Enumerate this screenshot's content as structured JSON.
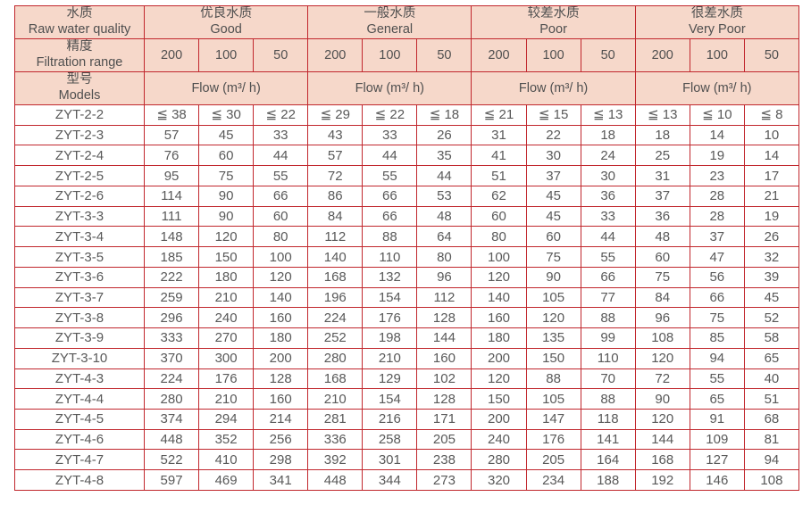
{
  "table": {
    "colors": {
      "border": "#c1272d",
      "header_bg": "#f6d8ca",
      "text": "#595959"
    },
    "header": {
      "quality_label": {
        "zh": "水质",
        "en": "Raw water quality"
      },
      "filtration_label": {
        "zh": "精度",
        "en": "Filtration range"
      },
      "models_label": {
        "zh": "型号",
        "en": "Models"
      },
      "quality_groups": [
        {
          "zh": "优良水质",
          "en": "Good"
        },
        {
          "zh": "一般水质",
          "en": "General"
        },
        {
          "zh": "较差水质",
          "en": "Poor"
        },
        {
          "zh": "很差水质",
          "en": "Very Poor"
        }
      ],
      "filtration_values": [
        "200",
        "100",
        "50",
        "200",
        "100",
        "50",
        "200",
        "100",
        "50",
        "200",
        "100",
        "50"
      ],
      "flow_labels": [
        "Flow (m³/ h)",
        "Flow (m³/ h)",
        "Flow (m³/ h)",
        "Flow (m³/ h)"
      ]
    },
    "rows": [
      {
        "model": "ZYT-2-2",
        "values": [
          "≦ 38",
          "≦ 30",
          "≦ 22",
          "≦ 29",
          "≦ 22",
          "≦ 18",
          "≦ 21",
          "≦ 15",
          "≦ 13",
          "≦ 13",
          "≦ 10",
          "≦ 8"
        ]
      },
      {
        "model": "ZYT-2-3",
        "values": [
          "57",
          "45",
          "33",
          "43",
          "33",
          "26",
          "31",
          "22",
          "18",
          "18",
          "14",
          "10"
        ]
      },
      {
        "model": "ZYT-2-4",
        "values": [
          "76",
          "60",
          "44",
          "57",
          "44",
          "35",
          "41",
          "30",
          "24",
          "25",
          "19",
          "14"
        ]
      },
      {
        "model": "ZYT-2-5",
        "values": [
          "95",
          "75",
          "55",
          "72",
          "55",
          "44",
          "51",
          "37",
          "30",
          "31",
          "23",
          "17"
        ]
      },
      {
        "model": "ZYT-2-6",
        "values": [
          "114",
          "90",
          "66",
          "86",
          "66",
          "53",
          "62",
          "45",
          "36",
          "37",
          "28",
          "21"
        ]
      },
      {
        "model": "ZYT-3-3",
        "values": [
          "111",
          "90",
          "60",
          "84",
          "66",
          "48",
          "60",
          "45",
          "33",
          "36",
          "28",
          "19"
        ]
      },
      {
        "model": "ZYT-3-4",
        "values": [
          "148",
          "120",
          "80",
          "112",
          "88",
          "64",
          "80",
          "60",
          "44",
          "48",
          "37",
          "26"
        ]
      },
      {
        "model": "ZYT-3-5",
        "values": [
          "185",
          "150",
          "100",
          "140",
          "110",
          "80",
          "100",
          "75",
          "55",
          "60",
          "47",
          "32"
        ]
      },
      {
        "model": "ZYT-3-6",
        "values": [
          "222",
          "180",
          "120",
          "168",
          "132",
          "96",
          "120",
          "90",
          "66",
          "75",
          "56",
          "39"
        ]
      },
      {
        "model": "ZYT-3-7",
        "values": [
          "259",
          "210",
          "140",
          "196",
          "154",
          "112",
          "140",
          "105",
          "77",
          "84",
          "66",
          "45"
        ]
      },
      {
        "model": "ZYT-3-8",
        "values": [
          "296",
          "240",
          "160",
          "224",
          "176",
          "128",
          "160",
          "120",
          "88",
          "96",
          "75",
          "52"
        ]
      },
      {
        "model": "ZYT-3-9",
        "values": [
          "333",
          "270",
          "180",
          "252",
          "198",
          "144",
          "180",
          "135",
          "99",
          "108",
          "85",
          "58"
        ]
      },
      {
        "model": "ZYT-3-10",
        "values": [
          "370",
          "300",
          "200",
          "280",
          "210",
          "160",
          "200",
          "150",
          "110",
          "120",
          "94",
          "65"
        ]
      },
      {
        "model": "ZYT-4-3",
        "values": [
          "224",
          "176",
          "128",
          "168",
          "129",
          "102",
          "120",
          "88",
          "70",
          "72",
          "55",
          "40"
        ]
      },
      {
        "model": "ZYT-4-4",
        "values": [
          "280",
          "210",
          "160",
          "210",
          "154",
          "128",
          "150",
          "105",
          "88",
          "90",
          "65",
          "51"
        ]
      },
      {
        "model": "ZYT-4-5",
        "values": [
          "374",
          "294",
          "214",
          "281",
          "216",
          "171",
          "200",
          "147",
          "118",
          "120",
          "91",
          "68"
        ]
      },
      {
        "model": "ZYT-4-6",
        "values": [
          "448",
          "352",
          "256",
          "336",
          "258",
          "205",
          "240",
          "176",
          "141",
          "144",
          "109",
          "81"
        ]
      },
      {
        "model": "ZYT-4-7",
        "values": [
          "522",
          "410",
          "298",
          "392",
          "301",
          "238",
          "280",
          "205",
          "164",
          "168",
          "127",
          "94"
        ]
      },
      {
        "model": "ZYT-4-8",
        "values": [
          "597",
          "469",
          "341",
          "448",
          "344",
          "273",
          "320",
          "234",
          "188",
          "192",
          "146",
          "108"
        ]
      }
    ]
  }
}
